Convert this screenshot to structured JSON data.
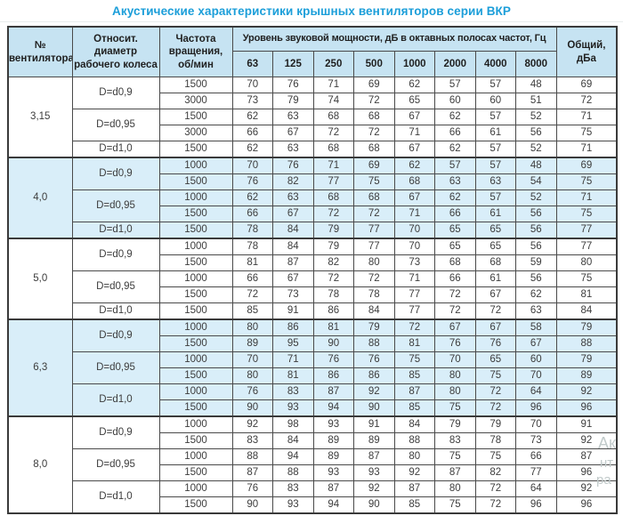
{
  "page": {
    "title": "Акустические характеристики крышных вентиляторов серии ВКР"
  },
  "colors": {
    "title_accent": "#1b9ed9",
    "header_bg": "#c6e3f2",
    "tint_row_bg": "#d9eef9",
    "border": "#4a4a4a"
  },
  "watermark": {
    "line1": "Ак",
    "line2": "нт",
    "line3": "ра"
  },
  "table": {
    "headers": {
      "fan": "№ вентилятора",
      "diameter": "Относит. диаметр рабочего колеса",
      "rpm": "Частота вращения, об/мин",
      "spl": "Уровень звуковой мощности, дБ в октавных полосах частот, Гц",
      "total": "Общий, дБа",
      "frequencies": [
        "63",
        "125",
        "250",
        "500",
        "1000",
        "2000",
        "4000",
        "8000"
      ]
    },
    "groups": [
      {
        "fan": "3,15",
        "tint": false,
        "diameters": [
          {
            "label": "D=d0,9",
            "rows": [
              {
                "rpm": "1500",
                "levels": [
                  70,
                  76,
                  71,
                  69,
                  62,
                  57,
                  57,
                  48
                ],
                "total": 69
              },
              {
                "rpm": "3000",
                "levels": [
                  73,
                  79,
                  74,
                  72,
                  65,
                  60,
                  60,
                  51
                ],
                "total": 72
              }
            ]
          },
          {
            "label": "D=d0,95",
            "rows": [
              {
                "rpm": "1500",
                "levels": [
                  62,
                  63,
                  68,
                  68,
                  67,
                  62,
                  57,
                  52
                ],
                "total": 71
              },
              {
                "rpm": "3000",
                "levels": [
                  66,
                  67,
                  72,
                  72,
                  71,
                  66,
                  61,
                  56
                ],
                "total": 75
              }
            ]
          },
          {
            "label": "D=d1,0",
            "rows": [
              {
                "rpm": "1500",
                "levels": [
                  62,
                  63,
                  68,
                  68,
                  67,
                  62,
                  57,
                  52
                ],
                "total": 71
              }
            ]
          }
        ]
      },
      {
        "fan": "4,0",
        "tint": true,
        "diameters": [
          {
            "label": "D=d0,9",
            "rows": [
              {
                "rpm": "1000",
                "levels": [
                  70,
                  76,
                  71,
                  69,
                  62,
                  57,
                  57,
                  48
                ],
                "total": 69
              },
              {
                "rpm": "1500",
                "levels": [
                  76,
                  82,
                  77,
                  75,
                  68,
                  63,
                  63,
                  54
                ],
                "total": 75
              }
            ]
          },
          {
            "label": "D=d0,95",
            "rows": [
              {
                "rpm": "1000",
                "levels": [
                  62,
                  63,
                  68,
                  68,
                  67,
                  62,
                  57,
                  52
                ],
                "total": 71
              },
              {
                "rpm": "1500",
                "levels": [
                  66,
                  67,
                  72,
                  72,
                  71,
                  66,
                  61,
                  56
                ],
                "total": 75
              }
            ]
          },
          {
            "label": "D=d1,0",
            "rows": [
              {
                "rpm": "1500",
                "levels": [
                  78,
                  84,
                  79,
                  77,
                  70,
                  65,
                  65,
                  56
                ],
                "total": 77
              }
            ]
          }
        ]
      },
      {
        "fan": "5,0",
        "tint": false,
        "diameters": [
          {
            "label": "D=d0,9",
            "rows": [
              {
                "rpm": "1000",
                "levels": [
                  78,
                  84,
                  79,
                  77,
                  70,
                  65,
                  65,
                  56
                ],
                "total": 77
              },
              {
                "rpm": "1500",
                "levels": [
                  81,
                  87,
                  82,
                  80,
                  73,
                  68,
                  68,
                  59
                ],
                "total": 80
              }
            ]
          },
          {
            "label": "D=d0,95",
            "rows": [
              {
                "rpm": "1000",
                "levels": [
                  66,
                  67,
                  72,
                  72,
                  71,
                  66,
                  61,
                  56
                ],
                "total": 75
              },
              {
                "rpm": "1500",
                "levels": [
                  72,
                  73,
                  78,
                  78,
                  77,
                  72,
                  67,
                  62
                ],
                "total": 81
              }
            ]
          },
          {
            "label": "D=d1,0",
            "rows": [
              {
                "rpm": "1500",
                "levels": [
                  85,
                  91,
                  86,
                  84,
                  77,
                  72,
                  72,
                  63
                ],
                "total": 84
              }
            ]
          }
        ]
      },
      {
        "fan": "6,3",
        "tint": true,
        "diameters": [
          {
            "label": "D=d0,9",
            "rows": [
              {
                "rpm": "1000",
                "levels": [
                  80,
                  86,
                  81,
                  79,
                  72,
                  67,
                  67,
                  58
                ],
                "total": 79
              },
              {
                "rpm": "1500",
                "levels": [
                  89,
                  95,
                  90,
                  88,
                  81,
                  76,
                  76,
                  67
                ],
                "total": 88
              }
            ]
          },
          {
            "label": "D=d0,95",
            "rows": [
              {
                "rpm": "1000",
                "levels": [
                  70,
                  71,
                  76,
                  76,
                  75,
                  70,
                  65,
                  60
                ],
                "total": 79
              },
              {
                "rpm": "1500",
                "levels": [
                  80,
                  81,
                  86,
                  86,
                  85,
                  80,
                  75,
                  70
                ],
                "total": 89
              }
            ]
          },
          {
            "label": "D=d1,0",
            "rows": [
              {
                "rpm": "1000",
                "levels": [
                  76,
                  83,
                  87,
                  92,
                  87,
                  80,
                  72,
                  64
                ],
                "total": 92
              },
              {
                "rpm": "1500",
                "levels": [
                  90,
                  93,
                  94,
                  90,
                  85,
                  75,
                  72,
                  96
                ],
                "total": 96
              }
            ]
          }
        ]
      },
      {
        "fan": "8,0",
        "tint": false,
        "diameters": [
          {
            "label": "D=d0,9",
            "rows": [
              {
                "rpm": "1000",
                "levels": [
                  92,
                  98,
                  93,
                  91,
                  84,
                  79,
                  79,
                  70
                ],
                "total": 91
              },
              {
                "rpm": "1500",
                "levels": [
                  83,
                  84,
                  89,
                  89,
                  88,
                  83,
                  78,
                  73
                ],
                "total": 92
              }
            ]
          },
          {
            "label": "D=d0,95",
            "rows": [
              {
                "rpm": "1000",
                "levels": [
                  88,
                  94,
                  89,
                  87,
                  80,
                  75,
                  75,
                  66
                ],
                "total": 87
              },
              {
                "rpm": "1500",
                "levels": [
                  87,
                  88,
                  93,
                  93,
                  92,
                  87,
                  82,
                  77
                ],
                "total": 96
              }
            ]
          },
          {
            "label": "D=d1,0",
            "rows": [
              {
                "rpm": "1000",
                "levels": [
                  76,
                  83,
                  87,
                  92,
                  87,
                  80,
                  72,
                  64
                ],
                "total": 92
              },
              {
                "rpm": "1500",
                "levels": [
                  90,
                  93,
                  94,
                  90,
                  85,
                  75,
                  72,
                  96
                ],
                "total": 96
              }
            ]
          }
        ]
      }
    ]
  }
}
